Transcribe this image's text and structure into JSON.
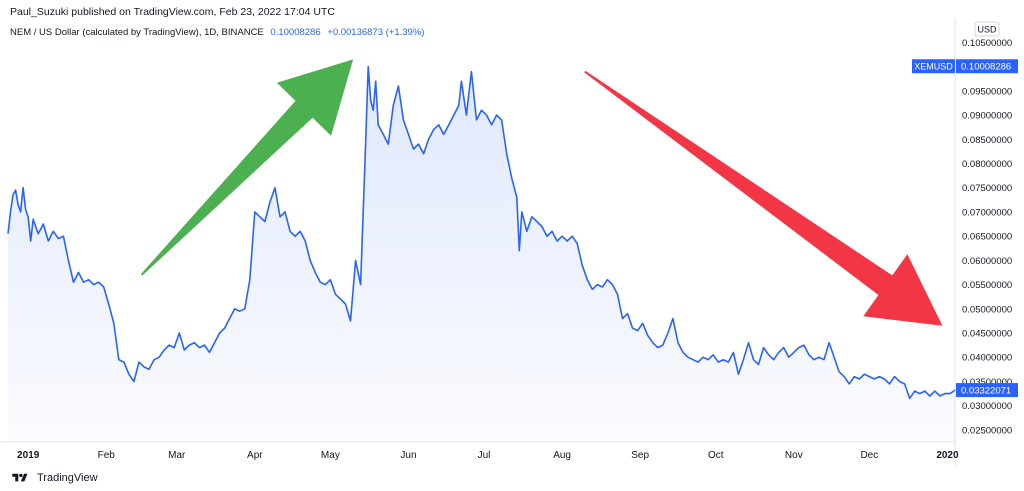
{
  "header": {
    "published": "Paul_Suzuki published on TradingView.com, Feb 23, 2022 17:04 UTC",
    "symbol_desc": "NEM / US Dollar (calculated by TradingView), 1D, BINANCE",
    "last_value": "0.10008286",
    "change": "+0.00136873 (+1.39%)"
  },
  "footer": {
    "brand": "TradingView"
  },
  "colors": {
    "line": "#2962ff",
    "fill": "#dfe7fd",
    "up_arrow": "#4caf50",
    "down_arrow": "#f23645",
    "grid": "#f0f3fa",
    "axis_text": "#131722"
  },
  "chart_data": {
    "type": "area",
    "currency": "USD",
    "series": [
      {
        "name": "XEMUSD",
        "points": [
          [
            "2018-12-24",
            0.0655
          ],
          [
            "2018-12-25",
            0.07
          ],
          [
            "2018-12-26",
            0.0735
          ],
          [
            "2018-12-27",
            0.0745
          ],
          [
            "2018-12-28",
            0.0715
          ],
          [
            "2018-12-29",
            0.07
          ],
          [
            "2018-12-30",
            0.075
          ],
          [
            "2018-12-31",
            0.0705
          ],
          [
            "2019-01-01",
            0.069
          ],
          [
            "2019-01-02",
            0.064
          ],
          [
            "2019-01-03",
            0.0685
          ],
          [
            "2019-01-05",
            0.0655
          ],
          [
            "2019-01-07",
            0.0675
          ],
          [
            "2019-01-09",
            0.064
          ],
          [
            "2019-01-11",
            0.066
          ],
          [
            "2019-01-13",
            0.0645
          ],
          [
            "2019-01-15",
            0.065
          ],
          [
            "2019-01-17",
            0.06
          ],
          [
            "2019-01-19",
            0.0555
          ],
          [
            "2019-01-21",
            0.0575
          ],
          [
            "2019-01-23",
            0.0555
          ],
          [
            "2019-01-25",
            0.056
          ],
          [
            "2019-01-27",
            0.055
          ],
          [
            "2019-01-29",
            0.0555
          ],
          [
            "2019-01-31",
            0.0545
          ],
          [
            "2019-02-02",
            0.051
          ],
          [
            "2019-02-04",
            0.047
          ],
          [
            "2019-02-06",
            0.0395
          ],
          [
            "2019-02-08",
            0.039
          ],
          [
            "2019-02-10",
            0.0365
          ],
          [
            "2019-02-12",
            0.035
          ],
          [
            "2019-02-14",
            0.039
          ],
          [
            "2019-02-16",
            0.038
          ],
          [
            "2019-02-18",
            0.0375
          ],
          [
            "2019-02-20",
            0.0395
          ],
          [
            "2019-02-22",
            0.04
          ],
          [
            "2019-02-24",
            0.0415
          ],
          [
            "2019-02-26",
            0.0425
          ],
          [
            "2019-02-28",
            0.042
          ],
          [
            "2019-03-02",
            0.045
          ],
          [
            "2019-03-04",
            0.0415
          ],
          [
            "2019-03-06",
            0.0425
          ],
          [
            "2019-03-08",
            0.043
          ],
          [
            "2019-03-10",
            0.042
          ],
          [
            "2019-03-12",
            0.0425
          ],
          [
            "2019-03-14",
            0.041
          ],
          [
            "2019-03-16",
            0.043
          ],
          [
            "2019-03-18",
            0.045
          ],
          [
            "2019-03-20",
            0.046
          ],
          [
            "2019-03-22",
            0.048
          ],
          [
            "2019-03-24",
            0.05
          ],
          [
            "2019-03-26",
            0.0495
          ],
          [
            "2019-03-28",
            0.05
          ],
          [
            "2019-03-30",
            0.056
          ],
          [
            "2019-04-01",
            0.07
          ],
          [
            "2019-04-03",
            0.069
          ],
          [
            "2019-04-05",
            0.068
          ],
          [
            "2019-04-07",
            0.072
          ],
          [
            "2019-04-09",
            0.075
          ],
          [
            "2019-04-11",
            0.069
          ],
          [
            "2019-04-13",
            0.07
          ],
          [
            "2019-04-15",
            0.066
          ],
          [
            "2019-04-17",
            0.065
          ],
          [
            "2019-04-19",
            0.066
          ],
          [
            "2019-04-21",
            0.064
          ],
          [
            "2019-04-23",
            0.06
          ],
          [
            "2019-04-25",
            0.0575
          ],
          [
            "2019-04-27",
            0.0555
          ],
          [
            "2019-04-29",
            0.055
          ],
          [
            "2019-05-01",
            0.056
          ],
          [
            "2019-05-03",
            0.053
          ],
          [
            "2019-05-05",
            0.052
          ],
          [
            "2019-05-07",
            0.051
          ],
          [
            "2019-05-09",
            0.0475
          ],
          [
            "2019-05-11",
            0.06
          ],
          [
            "2019-05-13",
            0.055
          ],
          [
            "2019-05-15",
            0.084
          ],
          [
            "2019-05-16",
            0.1
          ],
          [
            "2019-05-17",
            0.093
          ],
          [
            "2019-05-18",
            0.091
          ],
          [
            "2019-05-19",
            0.097
          ],
          [
            "2019-05-20",
            0.088
          ],
          [
            "2019-05-22",
            0.086
          ],
          [
            "2019-05-24",
            0.084
          ],
          [
            "2019-05-26",
            0.092
          ],
          [
            "2019-05-28",
            0.096
          ],
          [
            "2019-05-30",
            0.089
          ],
          [
            "2019-06-01",
            0.086
          ],
          [
            "2019-06-03",
            0.083
          ],
          [
            "2019-06-05",
            0.084
          ],
          [
            "2019-06-07",
            0.082
          ],
          [
            "2019-06-09",
            0.085
          ],
          [
            "2019-06-11",
            0.087
          ],
          [
            "2019-06-13",
            0.088
          ],
          [
            "2019-06-15",
            0.086
          ],
          [
            "2019-06-17",
            0.088
          ],
          [
            "2019-06-19",
            0.09
          ],
          [
            "2019-06-21",
            0.092
          ],
          [
            "2019-06-22",
            0.097
          ],
          [
            "2019-06-24",
            0.09
          ],
          [
            "2019-06-26",
            0.099
          ],
          [
            "2019-06-28",
            0.089
          ],
          [
            "2019-06-30",
            0.091
          ],
          [
            "2019-07-02",
            0.09
          ],
          [
            "2019-07-04",
            0.088
          ],
          [
            "2019-07-06",
            0.09
          ],
          [
            "2019-07-08",
            0.089
          ],
          [
            "2019-07-10",
            0.082
          ],
          [
            "2019-07-12",
            0.077
          ],
          [
            "2019-07-14",
            0.073
          ],
          [
            "2019-07-15",
            0.062
          ],
          [
            "2019-07-16",
            0.07
          ],
          [
            "2019-07-18",
            0.066
          ],
          [
            "2019-07-20",
            0.069
          ],
          [
            "2019-07-22",
            0.068
          ],
          [
            "2019-07-24",
            0.067
          ],
          [
            "2019-07-26",
            0.065
          ],
          [
            "2019-07-28",
            0.066
          ],
          [
            "2019-07-30",
            0.064
          ],
          [
            "2019-08-01",
            0.065
          ],
          [
            "2019-08-03",
            0.064
          ],
          [
            "2019-08-05",
            0.065
          ],
          [
            "2019-08-07",
            0.0635
          ],
          [
            "2019-08-09",
            0.059
          ],
          [
            "2019-08-11",
            0.056
          ],
          [
            "2019-08-13",
            0.054
          ],
          [
            "2019-08-15",
            0.055
          ],
          [
            "2019-08-17",
            0.0545
          ],
          [
            "2019-08-19",
            0.056
          ],
          [
            "2019-08-21",
            0.055
          ],
          [
            "2019-08-23",
            0.053
          ],
          [
            "2019-08-25",
            0.048
          ],
          [
            "2019-08-27",
            0.049
          ],
          [
            "2019-08-29",
            0.046
          ],
          [
            "2019-08-31",
            0.0455
          ],
          [
            "2019-09-02",
            0.047
          ],
          [
            "2019-09-04",
            0.0445
          ],
          [
            "2019-09-06",
            0.043
          ],
          [
            "2019-09-08",
            0.042
          ],
          [
            "2019-09-10",
            0.0425
          ],
          [
            "2019-09-12",
            0.045
          ],
          [
            "2019-09-14",
            0.048
          ],
          [
            "2019-09-16",
            0.043
          ],
          [
            "2019-09-18",
            0.041
          ],
          [
            "2019-09-20",
            0.04
          ],
          [
            "2019-09-22",
            0.0395
          ],
          [
            "2019-09-24",
            0.039
          ],
          [
            "2019-09-26",
            0.04
          ],
          [
            "2019-09-28",
            0.0395
          ],
          [
            "2019-09-30",
            0.0405
          ],
          [
            "2019-10-02",
            0.039
          ],
          [
            "2019-10-04",
            0.0395
          ],
          [
            "2019-10-06",
            0.039
          ],
          [
            "2019-10-08",
            0.041
          ],
          [
            "2019-10-10",
            0.0365
          ],
          [
            "2019-10-12",
            0.0395
          ],
          [
            "2019-10-14",
            0.043
          ],
          [
            "2019-10-16",
            0.0395
          ],
          [
            "2019-10-18",
            0.0385
          ],
          [
            "2019-10-20",
            0.042
          ],
          [
            "2019-10-22",
            0.0405
          ],
          [
            "2019-10-24",
            0.0395
          ],
          [
            "2019-10-26",
            0.041
          ],
          [
            "2019-10-28",
            0.042
          ],
          [
            "2019-10-30",
            0.04
          ],
          [
            "2019-11-01",
            0.041
          ],
          [
            "2019-11-03",
            0.042
          ],
          [
            "2019-11-05",
            0.0425
          ],
          [
            "2019-11-07",
            0.0405
          ],
          [
            "2019-11-09",
            0.0395
          ],
          [
            "2019-11-11",
            0.04
          ],
          [
            "2019-11-13",
            0.0395
          ],
          [
            "2019-11-15",
            0.043
          ],
          [
            "2019-11-17",
            0.04
          ],
          [
            "2019-11-19",
            0.037
          ],
          [
            "2019-11-21",
            0.036
          ],
          [
            "2019-11-23",
            0.0345
          ],
          [
            "2019-11-25",
            0.036
          ],
          [
            "2019-11-27",
            0.0355
          ],
          [
            "2019-11-29",
            0.0365
          ],
          [
            "2019-12-01",
            0.036
          ],
          [
            "2019-12-03",
            0.0355
          ],
          [
            "2019-12-05",
            0.036
          ],
          [
            "2019-12-07",
            0.0355
          ],
          [
            "2019-12-09",
            0.0345
          ],
          [
            "2019-12-11",
            0.036
          ],
          [
            "2019-12-13",
            0.035
          ],
          [
            "2019-12-15",
            0.0345
          ],
          [
            "2019-12-17",
            0.0315
          ],
          [
            "2019-12-19",
            0.033
          ],
          [
            "2019-12-21",
            0.0325
          ],
          [
            "2019-12-23",
            0.033
          ],
          [
            "2019-12-25",
            0.032
          ],
          [
            "2019-12-27",
            0.033
          ],
          [
            "2019-12-29",
            0.032
          ],
          [
            "2019-12-31",
            0.0325
          ],
          [
            "2020-01-02",
            0.0325
          ],
          [
            "2020-01-04",
            0.03322071
          ]
        ]
      }
    ],
    "x_range": [
      "2018-12-24",
      "2020-01-04"
    ],
    "ylim": [
      0.0225,
      0.1055
    ],
    "y_ticks": [
      {
        "value": 0.105,
        "label": "0.10500000"
      },
      {
        "value": 0.1,
        "label": "0.10000000"
      },
      {
        "value": 0.095,
        "label": "0.09500000"
      },
      {
        "value": 0.09,
        "label": "0.09000000"
      },
      {
        "value": 0.085,
        "label": "0.08500000"
      },
      {
        "value": 0.08,
        "label": "0.08000000"
      },
      {
        "value": 0.075,
        "label": "0.07500000"
      },
      {
        "value": 0.07,
        "label": "0.07000000"
      },
      {
        "value": 0.065,
        "label": "0.06500000"
      },
      {
        "value": 0.06,
        "label": "0.06000000"
      },
      {
        "value": 0.055,
        "label": "0.05500000"
      },
      {
        "value": 0.05,
        "label": "0.05000000"
      },
      {
        "value": 0.045,
        "label": "0.04500000"
      },
      {
        "value": 0.04,
        "label": "0.04000000"
      },
      {
        "value": 0.035,
        "label": "0.03500000"
      },
      {
        "value": 0.03,
        "label": "0.03000000"
      },
      {
        "value": 0.025,
        "label": "0.02500000"
      }
    ],
    "x_ticks": [
      {
        "date": "2019-01-01",
        "label": "2019",
        "bold": true
      },
      {
        "date": "2019-02-01",
        "label": "Feb"
      },
      {
        "date": "2019-03-01",
        "label": "Mar"
      },
      {
        "date": "2019-04-01",
        "label": "Apr"
      },
      {
        "date": "2019-05-01",
        "label": "May"
      },
      {
        "date": "2019-06-01",
        "label": "Jun"
      },
      {
        "date": "2019-07-01",
        "label": "Jul"
      },
      {
        "date": "2019-08-01",
        "label": "Aug"
      },
      {
        "date": "2019-09-01",
        "label": "Sep"
      },
      {
        "date": "2019-10-01",
        "label": "Oct"
      },
      {
        "date": "2019-11-01",
        "label": "Nov"
      },
      {
        "date": "2019-12-01",
        "label": "Dec"
      },
      {
        "date": "2020-01-01",
        "label": "2020",
        "bold": true
      }
    ],
    "price_labels": [
      {
        "text": "XEMUSD",
        "value": 0.10008286,
        "label": "0.10008286",
        "kind": "symbol"
      },
      {
        "text": "",
        "value": 0.03322071,
        "label": "0.03322071",
        "kind": "last"
      }
    ],
    "annotations": [
      {
        "type": "arrow",
        "direction": "up",
        "color": "#4caf50",
        "from": [
          "2019-02-15",
          0.057
        ],
        "to": [
          "2019-05-10",
          0.1015
        ]
      },
      {
        "type": "arrow",
        "direction": "down",
        "color": "#f23645",
        "from": [
          "2019-08-10",
          0.099
        ],
        "to": [
          "2019-12-30",
          0.0465
        ]
      }
    ]
  }
}
